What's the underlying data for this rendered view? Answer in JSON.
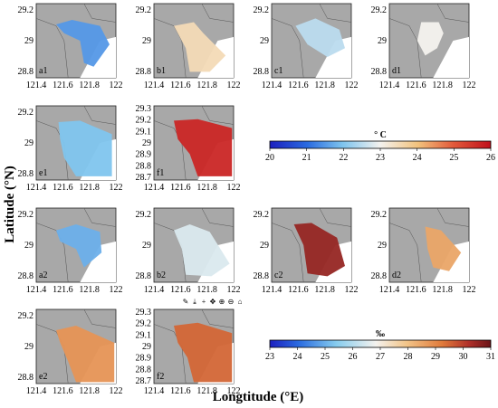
{
  "chart_data": {
    "type": "heatmap",
    "xlabel": "Longtitude (°E)",
    "ylabel": "Latitude (°N)",
    "x_ticks": [
      "121.4",
      "121.6",
      "121.8",
      "122"
    ],
    "y_ticks": [
      "28.8",
      "29",
      "29.2"
    ],
    "y_ticks_f": [
      "28.7",
      "28.8",
      "28.9",
      "29",
      "29.1",
      "29.2",
      "29.3"
    ],
    "colorbars": [
      {
        "unit": "° C",
        "ticks": [
          "20",
          "21",
          "22",
          "23",
          "24",
          "25",
          "26"
        ],
        "range": [
          20,
          26
        ]
      },
      {
        "unit": "‰",
        "ticks": [
          "23",
          "24",
          "25",
          "26",
          "27",
          "28",
          "29",
          "30",
          "31"
        ],
        "range": [
          23,
          31
        ]
      }
    ],
    "panels": [
      {
        "label": "a1",
        "variable": "temperature",
        "dominant_value": 21.5
      },
      {
        "label": "b1",
        "variable": "temperature",
        "dominant_value": 23.5
      },
      {
        "label": "c1",
        "variable": "temperature",
        "dominant_value": 22.5
      },
      {
        "label": "d1",
        "variable": "temperature",
        "dominant_value": 23.0
      },
      {
        "label": "e1",
        "variable": "temperature",
        "dominant_value": 22.0
      },
      {
        "label": "f1",
        "variable": "temperature",
        "dominant_value": 25.7
      },
      {
        "label": "a2",
        "variable": "salinity",
        "dominant_value": 25.0
      },
      {
        "label": "b2",
        "variable": "salinity",
        "dominant_value": 26.5
      },
      {
        "label": "c2",
        "variable": "salinity",
        "dominant_value": 30.5
      },
      {
        "label": "d2",
        "variable": "salinity",
        "dominant_value": 28.5
      },
      {
        "label": "e2",
        "variable": "salinity",
        "dominant_value": 28.8
      },
      {
        "label": "f2",
        "variable": "salinity",
        "dominant_value": 29.5
      }
    ]
  },
  "toolbar_icons": [
    "pencil-icon",
    "download-icon",
    "plus-icon",
    "pan-icon",
    "zoom-in-icon",
    "zoom-out-icon",
    "home-icon"
  ],
  "colors": {
    "land": "#a8a8a8",
    "cold": "#1e2ad0",
    "warm": "#c8141e",
    "neutral": "#f4f0ec"
  }
}
